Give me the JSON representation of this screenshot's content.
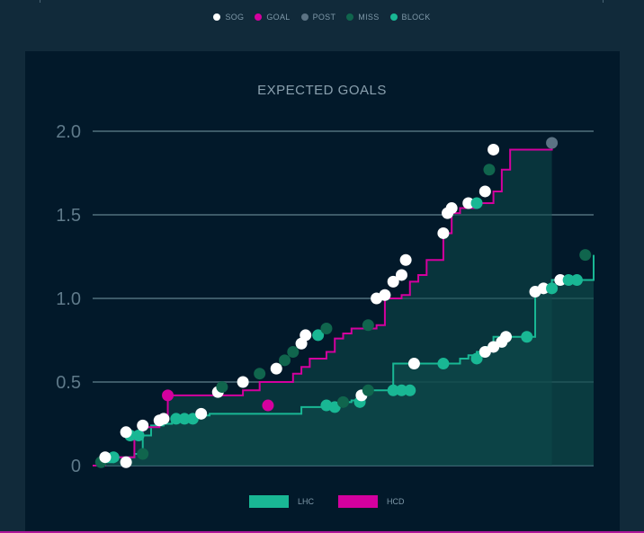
{
  "legend": {
    "items": [
      {
        "label": "SOG",
        "color": "#ffffff"
      },
      {
        "label": "GOAL",
        "color": "#d4009e"
      },
      {
        "label": "POST",
        "color": "#5c7384"
      },
      {
        "label": "MISS",
        "color": "#10654d"
      },
      {
        "label": "BLOCK",
        "color": "#19b794"
      }
    ]
  },
  "chart_data": {
    "type": "line",
    "title": "EXPECTED GOALS",
    "y_ticks": [
      "0",
      "0.5",
      "1.0",
      "1.5",
      "2.0"
    ],
    "ylim": [
      0,
      2.0
    ],
    "xlim": [
      0,
      60
    ],
    "grid": true,
    "series": [
      {
        "name": "LHC",
        "color": "#19b794",
        "fill": "#0e4a4a",
        "end_x": 60,
        "steps": [
          [
            0,
            0
          ],
          [
            1,
            0.02
          ],
          [
            2.5,
            0.05
          ],
          [
            3.5,
            0.05
          ],
          [
            4.5,
            0.05
          ],
          [
            5,
            0.07
          ],
          [
            6,
            0.18
          ],
          [
            7,
            0.24
          ],
          [
            8.5,
            0.25
          ],
          [
            9.5,
            0.27
          ],
          [
            10,
            0.28
          ],
          [
            11,
            0.28
          ],
          [
            12,
            0.29
          ],
          [
            13,
            0.3
          ],
          [
            14,
            0.31
          ],
          [
            15,
            0.31
          ],
          [
            25,
            0.35
          ],
          [
            27,
            0.35
          ],
          [
            28,
            0.36
          ],
          [
            30,
            0.38
          ],
          [
            31,
            0.39
          ],
          [
            32,
            0.44
          ],
          [
            33,
            0.45
          ],
          [
            34.5,
            0.45
          ],
          [
            35,
            0.45
          ],
          [
            36,
            0.61
          ],
          [
            40,
            0.61
          ],
          [
            44,
            0.64
          ],
          [
            45,
            0.66
          ],
          [
            46,
            0.68
          ],
          [
            47,
            0.71
          ],
          [
            48,
            0.77
          ],
          [
            51,
            0.77
          ],
          [
            53,
            1.04
          ],
          [
            54,
            1.06
          ],
          [
            55,
            1.11
          ],
          [
            56,
            1.11
          ],
          [
            58,
            1.11
          ],
          [
            59,
            1.11
          ],
          [
            60,
            1.26
          ]
        ],
        "points": [
          {
            "x": 1,
            "y": 0.02,
            "kind": "MISS"
          },
          {
            "x": 2.5,
            "y": 0.05,
            "kind": "BLOCK"
          },
          {
            "x": 6,
            "y": 0.07,
            "kind": "MISS"
          },
          {
            "x": 4.5,
            "y": 0.18,
            "kind": "BLOCK"
          },
          {
            "x": 5.5,
            "y": 0.18,
            "kind": "BLOCK"
          },
          {
            "x": 10,
            "y": 0.28,
            "kind": "BLOCK"
          },
          {
            "x": 11,
            "y": 0.28,
            "kind": "BLOCK"
          },
          {
            "x": 12,
            "y": 0.28,
            "kind": "BLOCK"
          },
          {
            "x": 13,
            "y": 0.31,
            "kind": "SOG"
          },
          {
            "x": 28,
            "y": 0.36,
            "kind": "BLOCK"
          },
          {
            "x": 29,
            "y": 0.35,
            "kind": "BLOCK"
          },
          {
            "x": 30,
            "y": 0.38,
            "kind": "MISS"
          },
          {
            "x": 32,
            "y": 0.38,
            "kind": "BLOCK"
          },
          {
            "x": 32.2,
            "y": 0.42,
            "kind": "SOG"
          },
          {
            "x": 33,
            "y": 0.45,
            "kind": "MISS"
          },
          {
            "x": 36,
            "y": 0.45,
            "kind": "BLOCK"
          },
          {
            "x": 37,
            "y": 0.45,
            "kind": "BLOCK"
          },
          {
            "x": 38,
            "y": 0.45,
            "kind": "BLOCK"
          },
          {
            "x": 38.5,
            "y": 0.61,
            "kind": "SOG"
          },
          {
            "x": 42,
            "y": 0.61,
            "kind": "BLOCK"
          },
          {
            "x": 46,
            "y": 0.64,
            "kind": "BLOCK"
          },
          {
            "x": 47,
            "y": 0.68,
            "kind": "SOG"
          },
          {
            "x": 48,
            "y": 0.71,
            "kind": "SOG"
          },
          {
            "x": 49,
            "y": 0.74,
            "kind": "SOG"
          },
          {
            "x": 49.5,
            "y": 0.77,
            "kind": "SOG"
          },
          {
            "x": 52,
            "y": 0.77,
            "kind": "BLOCK"
          },
          {
            "x": 53,
            "y": 1.04,
            "kind": "SOG"
          },
          {
            "x": 54,
            "y": 1.06,
            "kind": "SOG"
          },
          {
            "x": 55,
            "y": 1.06,
            "kind": "BLOCK"
          },
          {
            "x": 56,
            "y": 1.11,
            "kind": "SOG"
          },
          {
            "x": 57,
            "y": 1.11,
            "kind": "BLOCK"
          },
          {
            "x": 58,
            "y": 1.11,
            "kind": "BLOCK"
          },
          {
            "x": 59,
            "y": 1.26,
            "kind": "MISS"
          }
        ]
      },
      {
        "name": "HCD",
        "color": "#d4009e",
        "fill": "#0e4a4a",
        "end_x": 55,
        "steps": [
          [
            0,
            0
          ],
          [
            1.5,
            0.05
          ],
          [
            4,
            0.05
          ],
          [
            5,
            0.2
          ],
          [
            6,
            0.23
          ],
          [
            8,
            0.27
          ],
          [
            8.5,
            0.28
          ],
          [
            9,
            0.42
          ],
          [
            18,
            0.45
          ],
          [
            20,
            0.5
          ],
          [
            24,
            0.55
          ],
          [
            25,
            0.59
          ],
          [
            26,
            0.64
          ],
          [
            28,
            0.68
          ],
          [
            29,
            0.76
          ],
          [
            30,
            0.79
          ],
          [
            31,
            0.82
          ],
          [
            34,
            0.84
          ],
          [
            35,
            1.0
          ],
          [
            37,
            1.02
          ],
          [
            38,
            1.1
          ],
          [
            39,
            1.14
          ],
          [
            40,
            1.23
          ],
          [
            42,
            1.39
          ],
          [
            43,
            1.51
          ],
          [
            44,
            1.54
          ],
          [
            46,
            1.57
          ],
          [
            47,
            1.57
          ],
          [
            48,
            1.64
          ],
          [
            49,
            1.77
          ],
          [
            50,
            1.89
          ],
          [
            51,
            1.89
          ],
          [
            55,
            1.93
          ]
        ],
        "points": [
          {
            "x": 1.5,
            "y": 0.05,
            "kind": "SOG"
          },
          {
            "x": 4,
            "y": 0.02,
            "kind": "SOG"
          },
          {
            "x": 4,
            "y": 0.2,
            "kind": "SOG"
          },
          {
            "x": 6,
            "y": 0.24,
            "kind": "SOG"
          },
          {
            "x": 8,
            "y": 0.27,
            "kind": "SOG"
          },
          {
            "x": 8.5,
            "y": 0.28,
            "kind": "SOG"
          },
          {
            "x": 9,
            "y": 0.42,
            "kind": "GOAL"
          },
          {
            "x": 15,
            "y": 0.44,
            "kind": "SOG"
          },
          {
            "x": 15.5,
            "y": 0.47,
            "kind": "MISS"
          },
          {
            "x": 18,
            "y": 0.5,
            "kind": "SOG"
          },
          {
            "x": 20,
            "y": 0.55,
            "kind": "MISS"
          },
          {
            "x": 21,
            "y": 0.36,
            "kind": "GOAL"
          },
          {
            "x": 22,
            "y": 0.58,
            "kind": "SOG"
          },
          {
            "x": 23,
            "y": 0.63,
            "kind": "MISS"
          },
          {
            "x": 24,
            "y": 0.68,
            "kind": "MISS"
          },
          {
            "x": 25,
            "y": 0.73,
            "kind": "SOG"
          },
          {
            "x": 25.5,
            "y": 0.78,
            "kind": "SOG"
          },
          {
            "x": 27,
            "y": 0.78,
            "kind": "BLOCK"
          },
          {
            "x": 28,
            "y": 0.82,
            "kind": "MISS"
          },
          {
            "x": 33,
            "y": 0.84,
            "kind": "MISS"
          },
          {
            "x": 34,
            "y": 1.0,
            "kind": "SOG"
          },
          {
            "x": 35,
            "y": 1.02,
            "kind": "SOG"
          },
          {
            "x": 36,
            "y": 1.1,
            "kind": "SOG"
          },
          {
            "x": 37,
            "y": 1.14,
            "kind": "SOG"
          },
          {
            "x": 37.5,
            "y": 1.23,
            "kind": "SOG"
          },
          {
            "x": 42,
            "y": 1.39,
            "kind": "SOG"
          },
          {
            "x": 42.5,
            "y": 1.51,
            "kind": "SOG"
          },
          {
            "x": 43,
            "y": 1.54,
            "kind": "SOG"
          },
          {
            "x": 45,
            "y": 1.57,
            "kind": "SOG"
          },
          {
            "x": 46,
            "y": 1.57,
            "kind": "BLOCK"
          },
          {
            "x": 47,
            "y": 1.64,
            "kind": "SOG"
          },
          {
            "x": 47.5,
            "y": 1.77,
            "kind": "MISS"
          },
          {
            "x": 48,
            "y": 1.89,
            "kind": "SOG"
          },
          {
            "x": 55,
            "y": 1.93,
            "kind": "POST"
          }
        ]
      }
    ]
  }
}
